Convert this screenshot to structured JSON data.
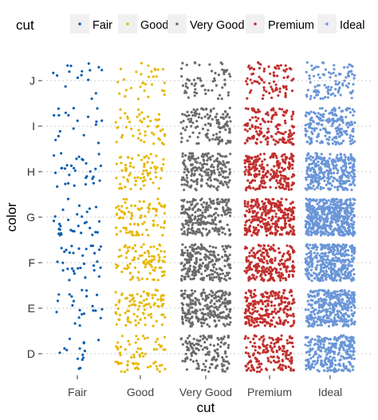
{
  "chart_data": {
    "type": "scatter",
    "jitter": true,
    "title": "",
    "xlabel": "cut",
    "ylabel": "color",
    "legend": {
      "title": "cut",
      "position": "top",
      "entries": [
        "Fair",
        "Good",
        "Very Good",
        "Premium",
        "Ideal"
      ]
    },
    "x_categories": [
      "Fair",
      "Good",
      "Very Good",
      "Premium",
      "Ideal"
    ],
    "y_categories": [
      "D",
      "E",
      "F",
      "G",
      "H",
      "I",
      "J"
    ],
    "series": [
      {
        "name": "Fair",
        "color": "#0b5fb0",
        "counts": {
          "D": 16,
          "E": 22,
          "F": 31,
          "G": 31,
          "H": 31,
          "I": 18,
          "J": 16
        }
      },
      {
        "name": "Good",
        "color": "#e7b800",
        "counts": {
          "D": 67,
          "E": 92,
          "F": 91,
          "G": 87,
          "H": 72,
          "I": 49,
          "J": 32
        }
      },
      {
        "name": "Very Good",
        "color": "#6b6b6b",
        "counts": {
          "D": 137,
          "E": 237,
          "F": 223,
          "G": 222,
          "H": 190,
          "I": 126,
          "J": 62
        }
      },
      {
        "name": "Premium",
        "color": "#c2302e",
        "counts": {
          "D": 163,
          "E": 232,
          "F": 228,
          "G": 288,
          "H": 232,
          "I": 143,
          "J": 81
        }
      },
      {
        "name": "Ideal",
        "color": "#6a96d8",
        "counts": {
          "D": 282,
          "E": 366,
          "F": 388,
          "G": 489,
          "H": 311,
          "I": 207,
          "J": 98
        }
      }
    ],
    "grid": true
  }
}
